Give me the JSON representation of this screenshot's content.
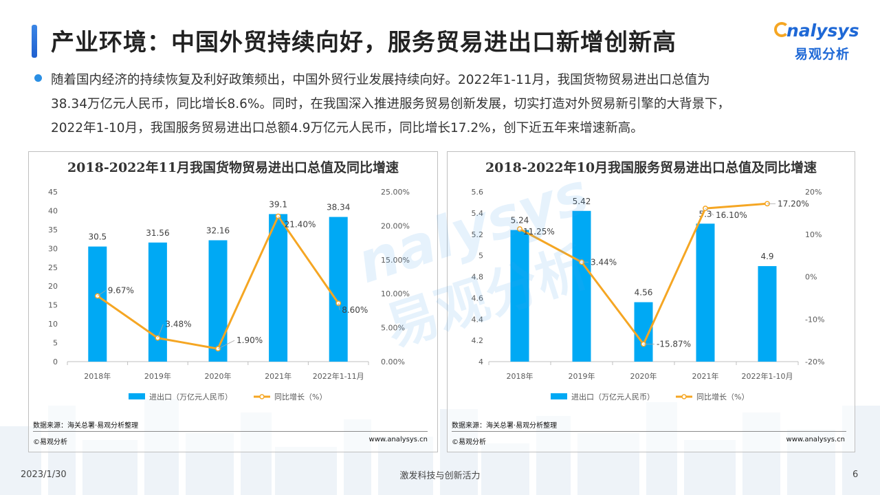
{
  "page": {
    "title": "产业环境：中国外贸持续向好，服务贸易进出口新增创新高",
    "logo_en": "nalysys",
    "logo_cn": "易观分析",
    "bullet_lines": [
      "随着国内经济的持续恢复及利好政策频出，中国外贸行业发展持续向好。2022年1-11月，我国货物贸易进出口总值为",
      "38.34万亿元人民币，同比增长8.6%。同时，在我国深入推进服务贸易创新发展，切实打造对外贸易新引擎的大背景下，",
      "2022年1-10月，我国服务贸易进出口总额4.9万亿元人民币，同比增长17.2%，创下近五年来增速新高。"
    ],
    "watermark": {
      "en": "nalysys",
      "cn": "易观分析"
    },
    "footer": {
      "date": "2023/1/30",
      "slogan": "激发科技与创新活力",
      "page_number": "6"
    },
    "colors": {
      "bar": "#00a9f4",
      "line": "#f5a623",
      "title_accent": "#2b74dd",
      "brand": "#1e68d6"
    }
  },
  "panels": [
    {
      "source": "数据来源：海关总署·易观分析整理",
      "copyright": "©易观分析",
      "website": "www.analysys.cn"
    },
    {
      "source": "数据来源：海关总署·易观分析整理",
      "copyright": "©易观分析",
      "website": "www.analysys.cn"
    }
  ],
  "chart_data": [
    {
      "type": "bar",
      "title": "2018-2022年11月我国货物贸易进出口总值及同比增速",
      "categories": [
        "2018年",
        "2019年",
        "2020年",
        "2021年",
        "2022年1-11月"
      ],
      "series": [
        {
          "name": "进出口（万亿元人民币）",
          "type": "bar",
          "axis": "left",
          "values": [
            30.5,
            31.56,
            32.16,
            39.1,
            38.34
          ],
          "labels": [
            "30.5",
            "31.56",
            "32.16",
            "39.1",
            "38.34"
          ]
        },
        {
          "name": "同比增长（%）",
          "type": "line",
          "axis": "right",
          "values": [
            9.67,
            3.48,
            1.9,
            21.4,
            8.6
          ],
          "labels": [
            "9.67%",
            "3.48%",
            "1.90%",
            "21.40%",
            "8.60%"
          ]
        }
      ],
      "y_left": {
        "min": 0,
        "max": 45,
        "ticks": [
          "0",
          "5",
          "10",
          "15",
          "20",
          "25",
          "30",
          "35",
          "40",
          "45"
        ]
      },
      "y_right": {
        "min": 0,
        "max": 25,
        "ticks": [
          "0.00%",
          "5.00%",
          "10.00%",
          "15.00%",
          "20.00%",
          "25.00%"
        ]
      },
      "grid": false,
      "legend": "bottom"
    },
    {
      "type": "bar",
      "title": "2018-2022年10月我国服务贸易进出口总值及同比增速",
      "categories": [
        "2018年",
        "2019年",
        "2020年",
        "2021年",
        "2022年1-10月"
      ],
      "series": [
        {
          "name": "进出口（万亿元人民币）",
          "type": "bar",
          "axis": "left",
          "values": [
            5.24,
            5.42,
            4.56,
            5.3,
            4.9
          ],
          "labels": [
            "5.24",
            "5.42",
            "4.56",
            "5.3",
            "4.9"
          ]
        },
        {
          "name": "同比增长（%）",
          "type": "line",
          "axis": "right",
          "values": [
            11.25,
            3.44,
            -15.87,
            16.1,
            17.2
          ],
          "labels": [
            "11.25%",
            "3.44%",
            "-15.87%",
            "16.10%",
            "17.20%"
          ]
        }
      ],
      "y_left": {
        "min": 4,
        "max": 5.6,
        "ticks": [
          "4",
          "4.2",
          "4.4",
          "4.6",
          "4.8",
          "5",
          "5.2",
          "5.4",
          "5.6"
        ]
      },
      "y_right": {
        "min": -20,
        "max": 20,
        "ticks": [
          "-20%",
          "-10%",
          "0%",
          "10%",
          "20%"
        ]
      },
      "grid": false,
      "legend": "bottom"
    }
  ]
}
